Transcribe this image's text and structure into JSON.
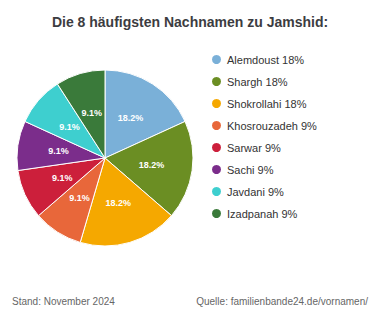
{
  "chart_data": {
    "type": "pie",
    "title": "Die 8 häufigsten Nachnamen zu Jamshid:",
    "categories": [
      "Alemdoust 18%",
      "Shargh 18%",
      "Shokrollahi 18%",
      "Khosrouzadeh 9%",
      "Sarwar 9%",
      "Sachi 9%",
      "Javdani 9%",
      "Izadpanah 9%"
    ],
    "values": [
      18.2,
      18.2,
      18.2,
      9.1,
      9.1,
      9.1,
      9.1,
      9.1
    ],
    "value_labels": [
      "18.2%",
      "18.2%",
      "18.2%",
      "9.1%",
      "9.1%",
      "9.1%",
      "9.1%",
      "9.1%"
    ],
    "colors": [
      "#7ab0d8",
      "#6b8e23",
      "#f5a800",
      "#e8673a",
      "#cc1f3b",
      "#7b2d8b",
      "#3ecfcf",
      "#3a7a3a"
    ],
    "data_labels": true,
    "legend": "right",
    "annotations": [
      "Stand: November 2024",
      "Quelle: familienbande24.de/vornamen/"
    ]
  }
}
